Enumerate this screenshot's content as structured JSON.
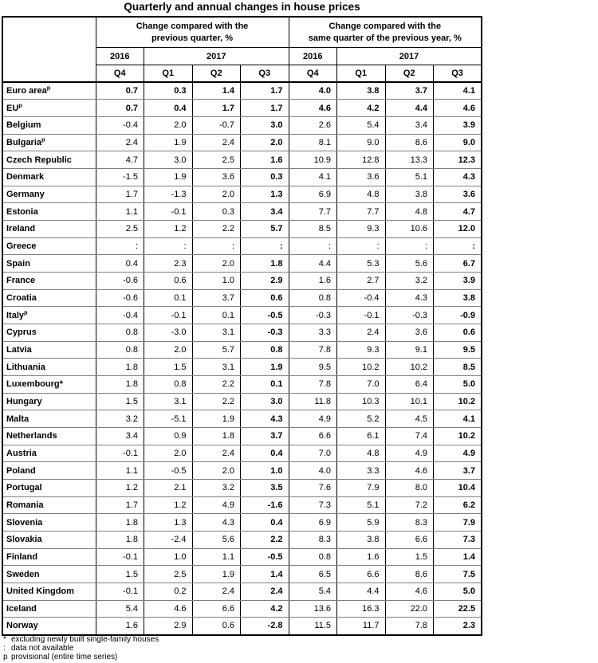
{
  "title": "Quarterly and annual changes in house prices",
  "table": {
    "group1": {
      "line1": "Change compared with the",
      "line2": "previous quarter, %"
    },
    "group2": {
      "line1": "Change compared with the",
      "line2": "same quarter of the previous year, %"
    },
    "years": [
      "2016",
      "2017",
      "2016",
      "2017"
    ],
    "quarters": [
      "Q4",
      "Q1",
      "Q2",
      "Q3",
      "Q4",
      "Q1",
      "Q2",
      "Q3"
    ],
    "rows": [
      {
        "name": "Euro area",
        "sup": "p",
        "bold": true,
        "values": [
          "0.7",
          "0.3",
          "1.4",
          "1.7",
          "4.0",
          "3.8",
          "3.7",
          "4.1"
        ]
      },
      {
        "name": "EU",
        "sup": "p",
        "bold": true,
        "values": [
          "0.7",
          "0.4",
          "1.7",
          "1.7",
          "4.6",
          "4.2",
          "4.4",
          "4.6"
        ]
      },
      {
        "name": "Belgium",
        "values": [
          "-0.4",
          "2.0",
          "-0.7",
          "3.0",
          "2.6",
          "5.4",
          "3.4",
          "3.9"
        ]
      },
      {
        "name": "Bulgaria",
        "sup": "p",
        "values": [
          "2.4",
          "1.9",
          "2.4",
          "2.0",
          "8.1",
          "9.0",
          "8.6",
          "9.0"
        ]
      },
      {
        "name": "Czech Republic",
        "values": [
          "4.7",
          "3.0",
          "2.5",
          "1.6",
          "10.9",
          "12.8",
          "13.3",
          "12.3"
        ]
      },
      {
        "name": "Denmark",
        "values": [
          "-1.5",
          "1.9",
          "3.6",
          "0.3",
          "4.1",
          "3.6",
          "5.1",
          "4.3"
        ]
      },
      {
        "name": "Germany",
        "values": [
          "1.7",
          "-1.3",
          "2.0",
          "1.3",
          "6.9",
          "4.8",
          "3.8",
          "3.6"
        ]
      },
      {
        "name": "Estonia",
        "values": [
          "1.1",
          "-0.1",
          "0.3",
          "3.4",
          "7.7",
          "7.7",
          "4.8",
          "4.7"
        ]
      },
      {
        "name": "Ireland",
        "values": [
          "2.5",
          "1.2",
          "2.2",
          "5.7",
          "8.5",
          "9.3",
          "10.6",
          "12.0"
        ]
      },
      {
        "name": "Greece",
        "values": [
          ":",
          ":",
          ":",
          ":",
          ":",
          ":",
          ":",
          ":"
        ]
      },
      {
        "name": "Spain",
        "values": [
          "0.4",
          "2.3",
          "2.0",
          "1.8",
          "4.4",
          "5.3",
          "5.6",
          "6.7"
        ]
      },
      {
        "name": "France",
        "values": [
          "-0.6",
          "0.6",
          "1.0",
          "2.9",
          "1.6",
          "2.7",
          "3.2",
          "3.9"
        ]
      },
      {
        "name": "Croatia",
        "values": [
          "-0.6",
          "0.1",
          "3.7",
          "0.6",
          "0.8",
          "-0.4",
          "4.3",
          "3.8"
        ]
      },
      {
        "name": "Italy",
        "sup": "p",
        "values": [
          "-0.4",
          "-0.1",
          "0.1",
          "-0.5",
          "-0.3",
          "-0.1",
          "-0.3",
          "-0.9"
        ]
      },
      {
        "name": "Cyprus",
        "values": [
          "0.8",
          "-3.0",
          "3.1",
          "-0.3",
          "3.3",
          "2.4",
          "3.6",
          "0.6"
        ]
      },
      {
        "name": "Latvia",
        "values": [
          "0.8",
          "2.0",
          "5.7",
          "0.8",
          "7.8",
          "9.3",
          "9.1",
          "9.5"
        ]
      },
      {
        "name": "Lithuania",
        "values": [
          "1.8",
          "1.5",
          "3.1",
          "1.9",
          "9.5",
          "10.2",
          "10.2",
          "8.5"
        ]
      },
      {
        "name": "Luxembourg*",
        "values": [
          "1.8",
          "0.8",
          "2.2",
          "0.1",
          "7.8",
          "7.0",
          "6.4",
          "5.0"
        ]
      },
      {
        "name": "Hungary",
        "values": [
          "1.5",
          "3.1",
          "2.2",
          "3.0",
          "11.8",
          "10.3",
          "10.1",
          "10.2"
        ]
      },
      {
        "name": "Malta",
        "values": [
          "3.2",
          "-5.1",
          "1.9",
          "4.3",
          "4.9",
          "5.2",
          "4.5",
          "4.1"
        ]
      },
      {
        "name": "Netherlands",
        "values": [
          "3.4",
          "0.9",
          "1.8",
          "3.7",
          "6.6",
          "6.1",
          "7.4",
          "10.2"
        ]
      },
      {
        "name": "Austria",
        "values": [
          "-0.1",
          "2.0",
          "2.4",
          "0.4",
          "7.0",
          "4.8",
          "4.9",
          "4.9"
        ]
      },
      {
        "name": "Poland",
        "values": [
          "1.1",
          "-0.5",
          "2.0",
          "1.0",
          "4.0",
          "3.3",
          "4.6",
          "3.7"
        ]
      },
      {
        "name": "Portugal",
        "values": [
          "1.2",
          "2.1",
          "3.2",
          "3.5",
          "7.6",
          "7.9",
          "8.0",
          "10.4"
        ]
      },
      {
        "name": "Romania",
        "values": [
          "1.7",
          "1.2",
          "4.9",
          "-1.6",
          "7.3",
          "5.1",
          "7.2",
          "6.2"
        ]
      },
      {
        "name": "Slovenia",
        "values": [
          "1.8",
          "1.3",
          "4.3",
          "0.4",
          "6.9",
          "5.9",
          "8.3",
          "7.9"
        ]
      },
      {
        "name": "Slovakia",
        "values": [
          "1.8",
          "-2.4",
          "5.6",
          "2.2",
          "8.3",
          "3.8",
          "6.6",
          "7.3"
        ]
      },
      {
        "name": "Finland",
        "values": [
          "-0.1",
          "1.0",
          "1.1",
          "-0.5",
          "0.8",
          "1.6",
          "1.5",
          "1.4"
        ]
      },
      {
        "name": "Sweden",
        "values": [
          "1.5",
          "2.5",
          "1.9",
          "1.4",
          "6.5",
          "6.6",
          "8.6",
          "7.5"
        ]
      },
      {
        "name": "United Kingdom",
        "values": [
          "-0.1",
          "0.2",
          "2.4",
          "2.4",
          "5.4",
          "4.4",
          "4.6",
          "5.0"
        ]
      },
      {
        "name": "Iceland",
        "values": [
          "5.4",
          "4.6",
          "6.6",
          "4.2",
          "13.6",
          "16.3",
          "22.0",
          "22.5"
        ]
      },
      {
        "name": "Norway",
        "values": [
          "1.6",
          "2.9",
          "0.6",
          "-2.8",
          "11.5",
          "11.7",
          "7.8",
          "2.3"
        ]
      }
    ]
  },
  "footnotes": [
    {
      "symbol": "*",
      "text": "excluding newly built single-family houses"
    },
    {
      "symbol": ":",
      "text": "data not available"
    },
    {
      "symbol": "p",
      "text": "provisional (entire time series)"
    }
  ]
}
